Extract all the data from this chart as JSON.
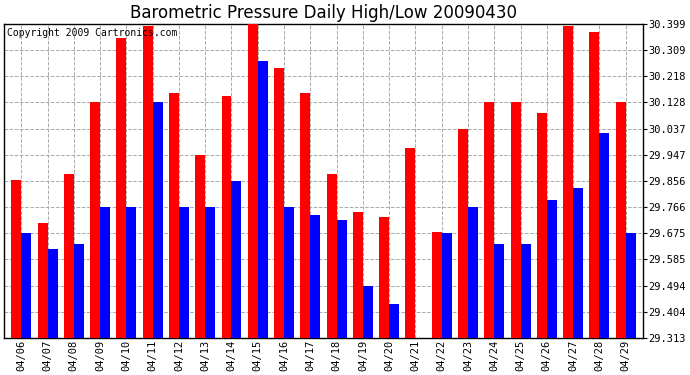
{
  "title": "Barometric Pressure Daily High/Low 20090430",
  "copyright": "Copyright 2009 Cartronics.com",
  "dates": [
    "04/06",
    "04/07",
    "04/08",
    "04/09",
    "04/10",
    "04/11",
    "04/12",
    "04/13",
    "04/14",
    "04/15",
    "04/16",
    "04/17",
    "04/18",
    "04/19",
    "04/20",
    "04/21",
    "04/22",
    "04/23",
    "04/24",
    "04/25",
    "04/26",
    "04/27",
    "04/28",
    "04/29"
  ],
  "highs": [
    29.86,
    29.71,
    29.88,
    30.128,
    30.35,
    30.39,
    30.16,
    29.947,
    30.15,
    30.399,
    30.245,
    30.16,
    29.88,
    29.75,
    29.73,
    29.97,
    29.68,
    30.037,
    30.128,
    30.128,
    30.09,
    30.39,
    30.37,
    30.128
  ],
  "lows": [
    29.675,
    29.62,
    29.64,
    29.766,
    29.766,
    30.128,
    29.766,
    29.766,
    29.856,
    30.27,
    29.766,
    29.74,
    29.72,
    29.494,
    29.43,
    29.313,
    29.675,
    29.766,
    29.64,
    29.64,
    29.79,
    29.83,
    30.02,
    29.675
  ],
  "ymin": 29.313,
  "ymax": 30.399,
  "yticks": [
    29.313,
    29.404,
    29.494,
    29.585,
    29.675,
    29.766,
    29.856,
    29.947,
    30.037,
    30.128,
    30.218,
    30.309,
    30.399
  ],
  "high_color": "#ff0000",
  "low_color": "#0000ff",
  "bg_color": "#ffffff",
  "grid_color": "#aaaaaa",
  "title_fontsize": 12,
  "tick_fontsize": 7.5,
  "bar_width": 0.38
}
